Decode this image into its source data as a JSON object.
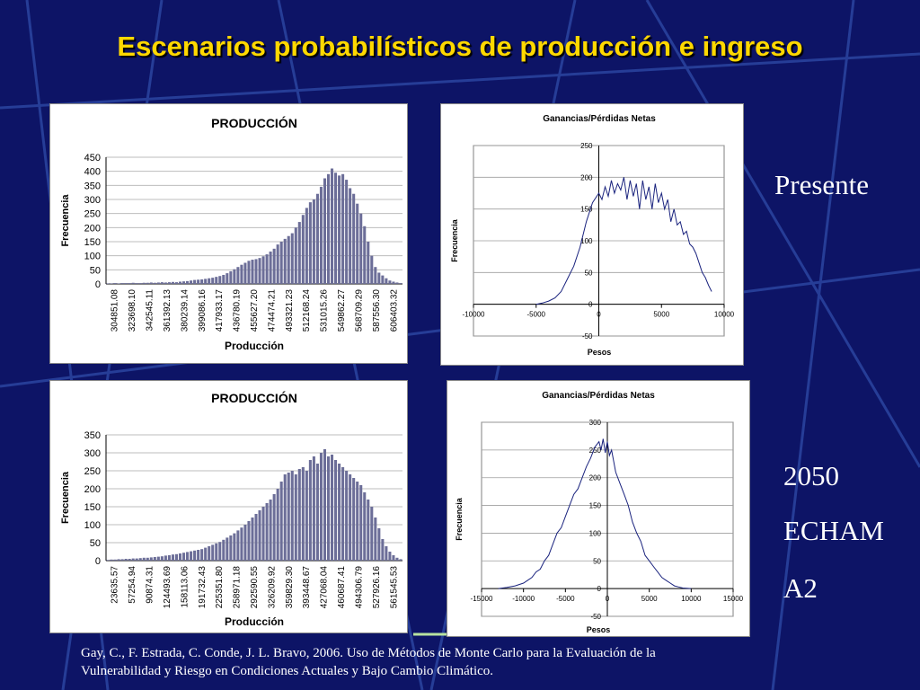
{
  "slide": {
    "title": "Escenarios probabilísticos de producción e ingreso",
    "label_present": "Presente",
    "label_future": [
      "2050",
      "ECHAM",
      "A2"
    ],
    "citation_line1": "Gay, C., F. Estrada, C. Conde, J. L. Bravo, 2006. Uso de Métodos de Monte Carlo para la Evaluación de la",
    "citation_line2": "Vulnerabilidad y Riesgo en Condiciones Actuales y Bajo Cambio Climático."
  },
  "colors": {
    "background": "#0d1466",
    "title": "#ffd800",
    "bars": "#6c6e98",
    "line": "#1a237e"
  },
  "chart_data": [
    {
      "type": "bar",
      "title": "PRODUCCIÓN",
      "xlabel": "Producción",
      "ylabel": "Frecuencia",
      "ylim": [
        0,
        450
      ],
      "yticks": [
        0,
        50,
        100,
        150,
        200,
        250,
        300,
        350,
        400,
        450
      ],
      "xtick_labels": [
        "304851.08",
        "323698.10",
        "342545.11",
        "361392.13",
        "380239.14",
        "399086.16",
        "417933.17",
        "436780.19",
        "455627.20",
        "474474.21",
        "493321.23",
        "512168.24",
        "531015.26",
        "549862.27",
        "568709.29",
        "587556.30",
        "606403.32"
      ],
      "values": [
        2,
        2,
        3,
        2,
        3,
        3,
        3,
        4,
        3,
        3,
        4,
        4,
        5,
        4,
        5,
        6,
        5,
        6,
        7,
        6,
        8,
        9,
        10,
        12,
        14,
        15,
        16,
        18,
        20,
        22,
        25,
        28,
        32,
        38,
        45,
        52,
        60,
        68,
        75,
        82,
        86,
        88,
        92,
        98,
        105,
        115,
        125,
        140,
        150,
        160,
        170,
        180,
        200,
        220,
        245,
        270,
        290,
        300,
        320,
        345,
        375,
        390,
        410,
        395,
        385,
        390,
        370,
        340,
        320,
        285,
        250,
        205,
        150,
        100,
        60,
        40,
        30,
        20,
        12,
        8,
        5,
        3
      ],
      "grid": true
    },
    {
      "type": "line",
      "title": "Ganancias/Pérdidas Netas",
      "xlabel": "Pesos",
      "ylabel": "Frecuencia",
      "xlim": [
        -10000,
        10000
      ],
      "ylim": [
        -50,
        250
      ],
      "xticks": [
        -10000,
        -5000,
        0,
        5000,
        10000
      ],
      "yticks": [
        -50,
        0,
        50,
        100,
        150,
        200,
        250
      ],
      "x": [
        -5000,
        -4500,
        -4000,
        -3500,
        -3000,
        -2500,
        -2000,
        -1500,
        -1000,
        -500,
        0,
        250,
        500,
        750,
        1000,
        1250,
        1500,
        1750,
        2000,
        2250,
        2500,
        2750,
        3000,
        3250,
        3500,
        3750,
        4000,
        4250,
        4500,
        4750,
        5000,
        5250,
        5500,
        5750,
        6000,
        6250,
        6500,
        6750,
        7000,
        7250,
        7500,
        7750,
        8000,
        8250,
        8500,
        8750,
        9000
      ],
      "y": [
        0,
        2,
        5,
        10,
        20,
        40,
        60,
        90,
        130,
        160,
        175,
        165,
        185,
        170,
        195,
        175,
        190,
        180,
        200,
        165,
        195,
        170,
        190,
        150,
        195,
        165,
        185,
        150,
        190,
        160,
        175,
        150,
        165,
        130,
        150,
        125,
        130,
        110,
        115,
        95,
        90,
        80,
        65,
        50,
        42,
        30,
        20
      ],
      "grid": true
    },
    {
      "type": "bar",
      "title": "PRODUCCIÓN",
      "xlabel": "Producción",
      "ylabel": "Frecuencia",
      "ylim": [
        0,
        350
      ],
      "yticks": [
        0,
        50,
        100,
        150,
        200,
        250,
        300,
        350
      ],
      "xtick_labels": [
        "23635.57",
        "57254.94",
        "90874.31",
        "124493.69",
        "158113.06",
        "191732.43",
        "225351.80",
        "258971.18",
        "292590.55",
        "326209.92",
        "359829.30",
        "393448.67",
        "427068.04",
        "460687.41",
        "494306.79",
        "527926.16",
        "561545.53"
      ],
      "values": [
        2,
        3,
        3,
        4,
        4,
        5,
        5,
        6,
        6,
        7,
        8,
        8,
        9,
        10,
        11,
        12,
        14,
        15,
        17,
        18,
        20,
        22,
        24,
        26,
        28,
        30,
        32,
        36,
        40,
        44,
        48,
        52,
        58,
        64,
        70,
        76,
        84,
        92,
        100,
        110,
        120,
        130,
        140,
        150,
        160,
        170,
        185,
        200,
        220,
        240,
        245,
        250,
        240,
        255,
        260,
        250,
        280,
        290,
        270,
        300,
        310,
        290,
        295,
        280,
        270,
        260,
        250,
        240,
        230,
        220,
        210,
        190,
        170,
        150,
        120,
        90,
        60,
        40,
        25,
        15,
        8,
        4
      ],
      "grid": true
    },
    {
      "type": "line",
      "title": "Ganancias/Pérdidas Netas",
      "xlabel": "Pesos",
      "ylabel": "Frecuencia",
      "xlim": [
        -15000,
        15000
      ],
      "ylim": [
        -50,
        300
      ],
      "xticks": [
        -15000,
        -10000,
        -5000,
        0,
        5000,
        10000,
        15000
      ],
      "yticks": [
        -50,
        0,
        50,
        100,
        150,
        200,
        250,
        300
      ],
      "x": [
        -13000,
        -12000,
        -11000,
        -10000,
        -9500,
        -9000,
        -8500,
        -8000,
        -7500,
        -7000,
        -6500,
        -6000,
        -5500,
        -5000,
        -4500,
        -4000,
        -3500,
        -3000,
        -2500,
        -2000,
        -1500,
        -1000,
        -750,
        -500,
        -250,
        0,
        250,
        500,
        750,
        1000,
        1500,
        2000,
        2500,
        3000,
        3500,
        4000,
        4500,
        5000,
        5500,
        6000,
        6500,
        7000,
        7500,
        8000,
        8500,
        9000,
        10000
      ],
      "y": [
        0,
        2,
        5,
        10,
        15,
        20,
        30,
        35,
        50,
        60,
        80,
        100,
        110,
        130,
        150,
        170,
        180,
        200,
        220,
        235,
        255,
        265,
        250,
        270,
        245,
        265,
        240,
        250,
        230,
        210,
        190,
        170,
        150,
        120,
        100,
        85,
        60,
        50,
        40,
        30,
        20,
        15,
        10,
        5,
        3,
        1,
        0
      ],
      "grid": true
    }
  ]
}
